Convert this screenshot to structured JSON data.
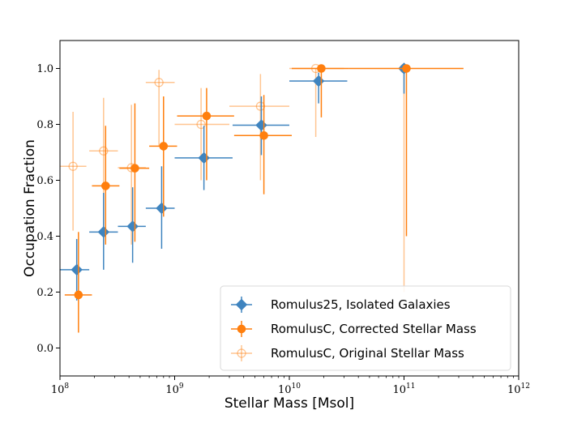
{
  "chart_data": {
    "type": "scatter",
    "title": "",
    "xlabel": "Stellar Mass [Msol]",
    "ylabel": "Occupation Fraction",
    "x_scale": "log",
    "xlim": [
      100000000,
      1000000000000
    ],
    "ylim": [
      -0.1,
      1.1
    ],
    "x_ticks": [
      100000000,
      1000000000,
      10000000000,
      100000000000,
      1000000000000
    ],
    "x_tick_labels": [
      {
        "base": "10",
        "exp": "8"
      },
      {
        "base": "10",
        "exp": "9"
      },
      {
        "base": "10",
        "exp": "10"
      },
      {
        "base": "10",
        "exp": "11"
      },
      {
        "base": "10",
        "exp": "12"
      }
    ],
    "y_ticks": [
      0.0,
      0.2,
      0.4,
      0.6,
      0.8,
      1.0
    ],
    "y_tick_labels": [
      "0.0",
      "0.2",
      "0.4",
      "0.6",
      "0.8",
      "1.0"
    ],
    "grid": false,
    "legend_position": "bottom-right",
    "series": [
      {
        "name": "RomulusC, Original Stellar Mass",
        "color": "#ff7f0e",
        "marker": "circle-open",
        "alpha": 0.45,
        "points": [
          {
            "x": 130000000,
            "y": 0.65,
            "x_lo": 100000000,
            "x_hi": 170000000,
            "y_lo": 0.42,
            "y_hi": 0.845
          },
          {
            "x": 240000000,
            "y": 0.705,
            "x_lo": 180000000,
            "x_hi": 320000000,
            "y_lo": 0.44,
            "y_hi": 0.895
          },
          {
            "x": 420000000,
            "y": 0.645,
            "x_lo": 320000000,
            "x_hi": 560000000,
            "y_lo": 0.37,
            "y_hi": 0.87
          },
          {
            "x": 730000000,
            "y": 0.95,
            "x_lo": 560000000,
            "x_hi": 1000000000,
            "y_lo": 0.72,
            "y_hi": 0.995
          },
          {
            "x": 1700000000,
            "y": 0.8,
            "x_lo": 1000000000,
            "x_hi": 3000000000,
            "y_lo": 0.6,
            "y_hi": 0.93
          },
          {
            "x": 5600000000,
            "y": 0.865,
            "x_lo": 3000000000,
            "x_hi": 10000000000,
            "y_lo": 0.6,
            "y_hi": 0.98
          },
          {
            "x": 17000000000,
            "y": 1.0,
            "x_lo": 10000000000,
            "x_hi": 30000000000,
            "y_lo": 0.755,
            "y_hi": 1.0
          },
          {
            "x": 100000000000,
            "y": 1.0,
            "x_lo": 100000000000,
            "x_hi": 100000000000,
            "y_lo": 0.2,
            "y_hi": 1.0
          }
        ]
      },
      {
        "name": "Romulus25, Isolated Galaxies",
        "color": "#3f84bf",
        "marker": "diamond",
        "alpha": 1,
        "points": [
          {
            "x": 140000000,
            "y": 0.28,
            "x_lo": 100000000,
            "x_hi": 180000000,
            "y_lo": 0.17,
            "y_hi": 0.39
          },
          {
            "x": 240000000,
            "y": 0.415,
            "x_lo": 180000000,
            "x_hi": 320000000,
            "y_lo": 0.28,
            "y_hi": 0.555
          },
          {
            "x": 430000000,
            "y": 0.435,
            "x_lo": 320000000,
            "x_hi": 560000000,
            "y_lo": 0.305,
            "y_hi": 0.575
          },
          {
            "x": 770000000,
            "y": 0.5,
            "x_lo": 560000000,
            "x_hi": 1000000000,
            "y_lo": 0.355,
            "y_hi": 0.65
          },
          {
            "x": 1800000000,
            "y": 0.68,
            "x_lo": 1000000000,
            "x_hi": 3200000000,
            "y_lo": 0.565,
            "y_hi": 0.795
          },
          {
            "x": 5700000000,
            "y": 0.797,
            "x_lo": 3200000000,
            "x_hi": 10000000000,
            "y_lo": 0.69,
            "y_hi": 0.9
          },
          {
            "x": 18000000000,
            "y": 0.955,
            "x_lo": 10000000000,
            "x_hi": 32000000000,
            "y_lo": 0.875,
            "y_hi": 0.985
          },
          {
            "x": 100000000000,
            "y": 1.0,
            "x_lo": 98000000000,
            "x_hi": 102000000000,
            "y_lo": 0.91,
            "y_hi": 1.0
          }
        ]
      },
      {
        "name": "RomulusC, Corrected Stellar Mass",
        "color": "#ff7f0e",
        "marker": "circle",
        "alpha": 1,
        "points": [
          {
            "x": 145000000,
            "y": 0.19,
            "x_lo": 110000000,
            "x_hi": 190000000,
            "y_lo": 0.055,
            "y_hi": 0.415
          },
          {
            "x": 250000000,
            "y": 0.58,
            "x_lo": 190000000,
            "x_hi": 330000000,
            "y_lo": 0.37,
            "y_hi": 0.795
          },
          {
            "x": 450000000,
            "y": 0.643,
            "x_lo": 330000000,
            "x_hi": 600000000,
            "y_lo": 0.38,
            "y_hi": 0.875
          },
          {
            "x": 800000000,
            "y": 0.722,
            "x_lo": 600000000,
            "x_hi": 1050000000,
            "y_lo": 0.47,
            "y_hi": 0.9
          },
          {
            "x": 1900000000,
            "y": 0.83,
            "x_lo": 1050000000,
            "x_hi": 3300000000,
            "y_lo": 0.6,
            "y_hi": 0.93
          },
          {
            "x": 6000000000,
            "y": 0.76,
            "x_lo": 3300000000,
            "x_hi": 10500000000,
            "y_lo": 0.55,
            "y_hi": 0.905
          },
          {
            "x": 19000000000,
            "y": 1.0,
            "x_lo": 10500000000,
            "x_hi": 33000000000,
            "y_lo": 0.825,
            "y_hi": 1.0
          },
          {
            "x": 105000000000,
            "y": 1.0,
            "x_lo": 33000000000,
            "x_hi": 330000000000,
            "y_lo": 0.4,
            "y_hi": 1.0
          }
        ]
      }
    ],
    "legend_order": [
      1,
      2,
      0
    ]
  }
}
